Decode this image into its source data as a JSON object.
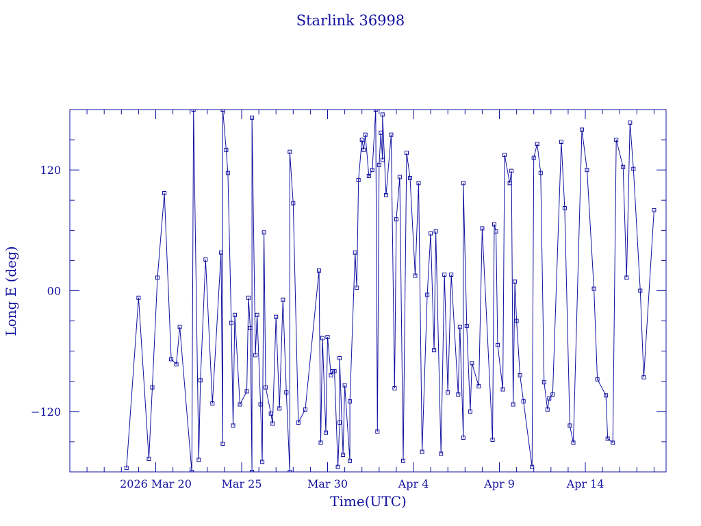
{
  "chart_data": {
    "type": "line",
    "title": "Starlink 36998",
    "xlabel": "Time(UTC)",
    "ylabel": "Long E (deg)",
    "x_tick_labels": [
      "2026 Mar 20",
      "Mar 25",
      "Mar 30",
      "Apr  4",
      "Apr  9",
      "Apr 14"
    ],
    "x_ticks": [
      {
        "label": "2026 Mar 20",
        "day": 20
      },
      {
        "label": "Mar 25",
        "day": 25
      },
      {
        "label": "Mar 30",
        "day": 30
      },
      {
        "label": "Apr  4",
        "day": 35
      },
      {
        "label": "Apr  9",
        "day": 40
      },
      {
        "label": "Apr 14",
        "day": 45
      }
    ],
    "y_tick_labels": [
      "120",
      "00",
      "−120"
    ],
    "y_ticks": [
      120,
      0,
      -120
    ],
    "xlim": [
      15.0,
      49.7
    ],
    "ylim": [
      -180,
      180
    ],
    "grid": false,
    "marker": "square",
    "color": "#1010a0",
    "series": [
      {
        "points": [
          [
            18.3,
            -176
          ],
          [
            19.0,
            -7
          ],
          [
            19.6,
            -167
          ],
          [
            19.8,
            -96
          ],
          [
            20.1,
            13
          ],
          [
            20.5,
            97
          ],
          [
            20.9,
            -68
          ],
          [
            21.2,
            -73
          ],
          [
            21.4,
            -36
          ],
          [
            22.1,
            -180
          ],
          [
            22.2,
            180
          ],
          [
            22.5,
            -168
          ],
          [
            22.6,
            -89
          ],
          [
            22.9,
            31
          ],
          [
            23.3,
            -112
          ],
          [
            23.8,
            38
          ],
          [
            23.9,
            -152
          ],
          [
            23.9,
            180
          ],
          [
            24.1,
            140
          ],
          [
            24.2,
            117
          ],
          [
            24.4,
            -32
          ],
          [
            24.5,
            -134
          ],
          [
            24.6,
            -24
          ],
          [
            24.9,
            -113
          ],
          [
            25.3,
            -100
          ],
          [
            25.4,
            -7
          ],
          [
            25.5,
            -37
          ],
          [
            25.6,
            -180
          ],
          [
            25.6,
            172
          ],
          [
            25.8,
            -64
          ],
          [
            25.9,
            -24
          ],
          [
            26.1,
            -113
          ],
          [
            26.2,
            -170
          ],
          [
            26.3,
            58
          ],
          [
            26.4,
            -96
          ],
          [
            26.7,
            -122
          ],
          [
            26.8,
            -132
          ],
          [
            27.0,
            -26
          ],
          [
            27.2,
            -117
          ],
          [
            27.4,
            -9
          ],
          [
            27.6,
            -101
          ],
          [
            27.8,
            -180
          ],
          [
            27.8,
            138
          ],
          [
            28.0,
            87
          ],
          [
            28.3,
            -131
          ],
          [
            28.7,
            -118
          ],
          [
            29.5,
            20
          ],
          [
            29.6,
            -151
          ],
          [
            29.7,
            -47
          ],
          [
            29.9,
            -141
          ],
          [
            30.0,
            -46
          ],
          [
            30.2,
            -84
          ],
          [
            30.3,
            -80
          ],
          [
            30.4,
            -80
          ],
          [
            30.6,
            -175
          ],
          [
            30.7,
            -131
          ],
          [
            30.7,
            -67
          ],
          [
            30.9,
            -163
          ],
          [
            31.0,
            -94
          ],
          [
            31.3,
            -169
          ],
          [
            31.3,
            -110
          ],
          [
            31.6,
            38
          ],
          [
            31.7,
            3
          ],
          [
            31.8,
            110
          ],
          [
            32.0,
            150
          ],
          [
            32.1,
            140
          ],
          [
            32.2,
            155
          ],
          [
            32.4,
            114
          ],
          [
            32.6,
            120
          ],
          [
            32.8,
            180
          ],
          [
            32.9,
            -140
          ],
          [
            33.0,
            125
          ],
          [
            33.1,
            157
          ],
          [
            33.2,
            130
          ],
          [
            33.2,
            175
          ],
          [
            33.4,
            95
          ],
          [
            33.7,
            155
          ],
          [
            33.9,
            -97
          ],
          [
            34.0,
            71
          ],
          [
            34.2,
            113
          ],
          [
            34.4,
            -169
          ],
          [
            34.6,
            137
          ],
          [
            34.8,
            112
          ],
          [
            35.1,
            15
          ],
          [
            35.3,
            107
          ],
          [
            35.5,
            -160
          ],
          [
            35.8,
            -4
          ],
          [
            36.0,
            57
          ],
          [
            36.2,
            -59
          ],
          [
            36.3,
            59
          ],
          [
            36.6,
            -162
          ],
          [
            36.8,
            16
          ],
          [
            37.0,
            -101
          ],
          [
            37.2,
            16
          ],
          [
            37.6,
            -103
          ],
          [
            37.7,
            -36
          ],
          [
            37.9,
            -146
          ],
          [
            37.9,
            107
          ],
          [
            38.1,
            -35
          ],
          [
            38.3,
            -120
          ],
          [
            38.4,
            -72
          ],
          [
            38.8,
            -95
          ],
          [
            39.0,
            62
          ],
          [
            39.6,
            -148
          ],
          [
            39.7,
            66
          ],
          [
            39.8,
            59
          ],
          [
            39.9,
            -54
          ],
          [
            40.2,
            -98
          ],
          [
            40.3,
            135
          ],
          [
            40.6,
            107
          ],
          [
            40.7,
            119
          ],
          [
            40.8,
            -113
          ],
          [
            40.9,
            9
          ],
          [
            41.0,
            -30
          ],
          [
            41.2,
            -84
          ],
          [
            41.4,
            -110
          ],
          [
            41.9,
            -175
          ],
          [
            42.0,
            132
          ],
          [
            42.2,
            146
          ],
          [
            42.4,
            117
          ],
          [
            42.6,
            -91
          ],
          [
            42.8,
            -118
          ],
          [
            42.9,
            -107
          ],
          [
            43.1,
            -103
          ],
          [
            43.6,
            148
          ],
          [
            43.8,
            82
          ],
          [
            44.1,
            -134
          ],
          [
            44.3,
            -151
          ],
          [
            44.8,
            160
          ],
          [
            45.1,
            120
          ],
          [
            45.5,
            2
          ],
          [
            45.7,
            -88
          ],
          [
            46.2,
            -104
          ],
          [
            46.3,
            -147
          ],
          [
            46.6,
            -151
          ],
          [
            46.8,
            150
          ],
          [
            47.2,
            123
          ],
          [
            47.4,
            13
          ],
          [
            47.6,
            167
          ],
          [
            47.8,
            121
          ],
          [
            48.2,
            0
          ],
          [
            48.4,
            -86
          ],
          [
            49.0,
            80
          ]
        ]
      }
    ]
  }
}
